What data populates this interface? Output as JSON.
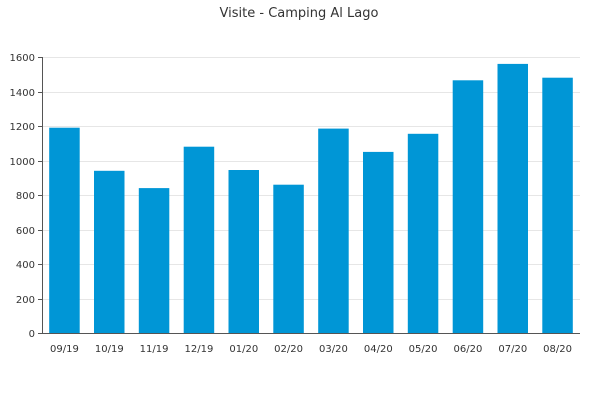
{
  "chart_data": {
    "type": "bar",
    "title": "Visite - Camping Al Lago",
    "xlabel": "",
    "ylabel": "",
    "categories": [
      "09/19",
      "10/19",
      "11/19",
      "12/19",
      "01/20",
      "02/20",
      "03/20",
      "04/20",
      "05/20",
      "06/20",
      "07/20",
      "08/20"
    ],
    "values": [
      1190,
      940,
      840,
      1080,
      945,
      860,
      1185,
      1050,
      1155,
      1465,
      1560,
      1480
    ],
    "ylim": [
      0,
      1600
    ],
    "yticks": [
      0,
      200,
      400,
      600,
      800,
      1000,
      1200,
      1400,
      1600
    ],
    "grid": true,
    "legend": "none",
    "bar_color": "#0096d6"
  }
}
